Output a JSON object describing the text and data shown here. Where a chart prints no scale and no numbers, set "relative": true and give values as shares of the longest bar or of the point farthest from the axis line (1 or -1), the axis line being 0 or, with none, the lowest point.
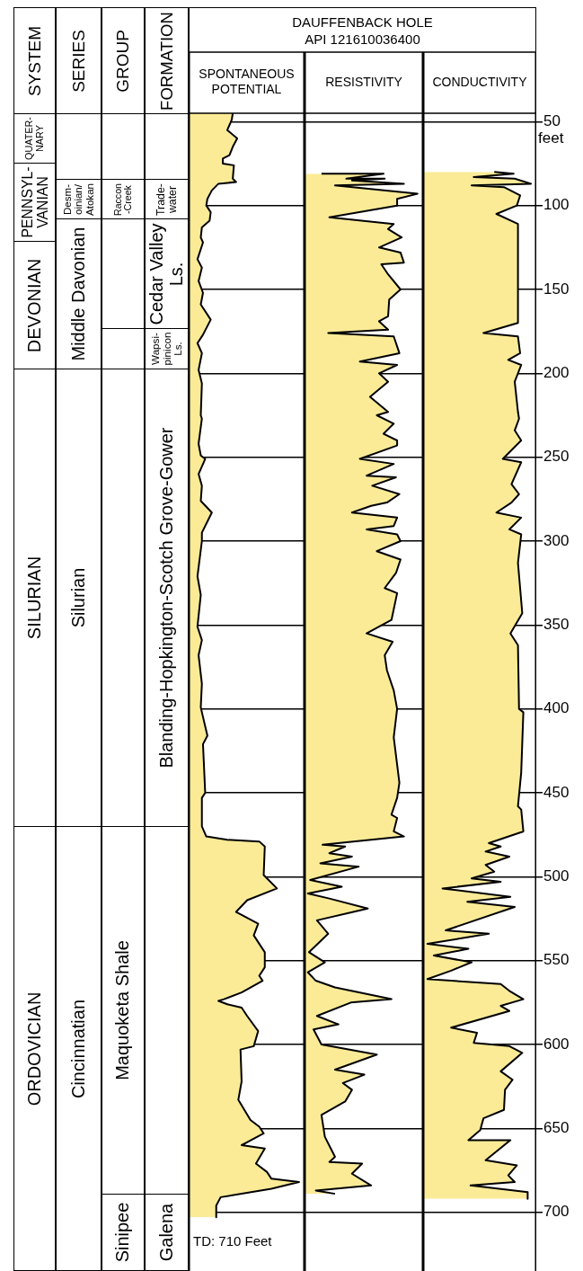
{
  "chart_data": [
    {
      "type": "other",
      "title": "SYSTEM",
      "annotations": [
        "QUATER-\nNARY",
        "PENNSYL-\nVANIAN",
        "DEVONIAN",
        "SILURIAN",
        "ORDOVICIAN"
      ]
    },
    {
      "type": "other",
      "title": "SERIES",
      "annotations": [
        "Desm-\noinian/\nAtokan",
        "Middle Davonian",
        "Silurian",
        "Cincinnatian"
      ]
    },
    {
      "type": "other",
      "title": "GROUP",
      "annotations": [
        "Raccon\n-Creek",
        "Maquoketa Shale",
        "Sinipee"
      ]
    },
    {
      "type": "other",
      "title": "FORMATION",
      "annotations": [
        "Trade-\nwater",
        "Cedar Valley\nLs.",
        "Wapsi-\npinicon\nLs.",
        "Blanding-Hopkington-Scotch Grove-Gower",
        "Galena"
      ]
    },
    {
      "type": "other",
      "title": "DAUFFENBACK HOLE",
      "subtitle": "API 121610036400"
    },
    {
      "type": "area",
      "title": "SPONTANEOUS POTENTIAL",
      "relative": true,
      "orientation": "horizontal",
      "color": "#fbeb97",
      "ylim": [
        735,
        45
      ],
      "yticks": [
        50,
        100,
        150,
        200,
        250,
        300,
        350,
        400,
        450,
        500,
        550,
        600,
        650,
        700
      ],
      "grid": "y",
      "tick_labels": false,
      "annotations": [
        "TD: 710 Feet"
      ],
      "x": [
        45,
        49,
        55,
        60,
        65,
        70,
        72,
        75,
        76,
        84,
        86,
        87,
        91,
        96,
        100,
        104,
        109,
        113,
        119,
        122,
        132,
        137,
        145,
        152,
        159,
        168,
        177,
        182,
        188,
        198,
        206,
        225,
        227,
        242,
        249,
        251,
        260,
        267,
        276,
        283,
        295,
        300,
        321,
        332,
        351,
        359,
        368,
        385,
        399,
        402,
        416,
        421,
        450,
        453,
        470,
        476,
        478,
        479,
        482,
        499,
        507,
        514,
        521,
        528,
        535,
        545,
        554,
        559,
        562,
        569,
        573,
        574,
        576,
        578,
        583,
        592,
        601,
        603,
        622,
        633,
        645,
        649,
        653,
        660,
        662,
        671,
        676,
        680,
        682,
        686,
        691,
        696,
        703
      ],
      "values": [
        0.4,
        0.39,
        0.35,
        0.44,
        0.4,
        0.37,
        0.31,
        0.31,
        0.41,
        0.4,
        0.43,
        0.27,
        0.21,
        0.17,
        0.16,
        0.2,
        0.19,
        0.12,
        0.11,
        0.13,
        0.08,
        0.12,
        0.09,
        0.13,
        0.11,
        0.2,
        0.13,
        0.08,
        0.12,
        0.09,
        0.12,
        0.11,
        0.12,
        0.09,
        0.11,
        0.15,
        0.09,
        0.12,
        0.11,
        0.21,
        0.12,
        0.12,
        0.08,
        0.11,
        0.08,
        0.12,
        0.09,
        0.12,
        0.11,
        0.12,
        0.17,
        0.13,
        0.15,
        0.12,
        0.12,
        0.16,
        0.35,
        0.64,
        0.69,
        0.68,
        0.8,
        0.53,
        0.43,
        0.63,
        0.59,
        0.69,
        0.69,
        0.64,
        0.67,
        0.48,
        0.32,
        0.27,
        0.35,
        0.48,
        0.53,
        0.63,
        0.59,
        0.47,
        0.48,
        0.45,
        0.56,
        0.64,
        0.68,
        0.48,
        0.69,
        0.61,
        0.71,
        0.75,
        1,
        0.75,
        0.29,
        0.25,
        0.25
      ]
    },
    {
      "type": "area",
      "title": "RESISTIVITY",
      "relative": true,
      "orientation": "horizontal",
      "color": "#fbeb97",
      "ylim": [
        735,
        45
      ],
      "yticks": [
        50,
        100,
        150,
        200,
        250,
        300,
        350,
        400,
        450,
        500,
        550,
        600,
        650,
        700
      ],
      "grid": "y",
      "tick_labels": false,
      "x": [
        81,
        81,
        84,
        84,
        85,
        87,
        88,
        93,
        96,
        100,
        107,
        111,
        114,
        119,
        125,
        128,
        134,
        135,
        141,
        150,
        156,
        166,
        169,
        174,
        176,
        178,
        188,
        193,
        195,
        200,
        205,
        214,
        223,
        225,
        230,
        236,
        240,
        243,
        251,
        254,
        261,
        262,
        267,
        272,
        277,
        279,
        283,
        286,
        291,
        293,
        296,
        300,
        306,
        311,
        319,
        328,
        331,
        347,
        355,
        360,
        368,
        377,
        389,
        400,
        417,
        444,
        453,
        463,
        465,
        473,
        476,
        481,
        482,
        486,
        488,
        492,
        494,
        502,
        506,
        510,
        513,
        519,
        526,
        534,
        545,
        551,
        557,
        562,
        566,
        573,
        575,
        583,
        588,
        591,
        600,
        606,
        615,
        618,
        623,
        627,
        634,
        642,
        655,
        667,
        670,
        671,
        677,
        684,
        687,
        689
      ],
      "values": [
        0.15,
        0.7,
        0.37,
        0.71,
        0.42,
        0.88,
        0.27,
        1,
        0.82,
        0.82,
        0.22,
        0.79,
        0.74,
        0.86,
        0.66,
        0.85,
        0.88,
        0.68,
        0.74,
        0.85,
        0.75,
        0.74,
        0.66,
        0.74,
        0.21,
        0.79,
        0.84,
        0.49,
        0.82,
        0.66,
        0.74,
        0.58,
        0.74,
        0.64,
        0.79,
        0.7,
        0.82,
        0.82,
        0.49,
        0.79,
        0.55,
        0.81,
        0.6,
        0.84,
        0.73,
        0.59,
        0.42,
        0.82,
        0.79,
        0.55,
        0.82,
        0.85,
        0.64,
        0.85,
        0.81,
        0.71,
        0.82,
        0.77,
        0.55,
        0.78,
        0.71,
        0.73,
        0.79,
        0.82,
        0.79,
        0.84,
        0.82,
        0.77,
        0.82,
        0.79,
        0.88,
        0.16,
        0.36,
        0.22,
        0.42,
        0.14,
        0.48,
        0.05,
        0.33,
        0.03,
        0.22,
        0.56,
        0.11,
        0.21,
        0.04,
        0.18,
        0.03,
        0.1,
        0.27,
        0.77,
        0.41,
        0.11,
        0.3,
        0.08,
        0.15,
        0.64,
        0.27,
        0.53,
        0.34,
        0.42,
        0.36,
        0.15,
        0.18,
        0.27,
        0.22,
        0.51,
        0.42,
        0.59,
        0.1,
        0.27
      ]
    },
    {
      "type": "area",
      "title": "CONDUCTIVITY",
      "relative": true,
      "orientation": "horizontal",
      "color": "#fbeb97",
      "ylim": [
        735,
        45
      ],
      "yticks": [
        50,
        100,
        150,
        200,
        250,
        300,
        350,
        400,
        450,
        500,
        550,
        600,
        650,
        700
      ],
      "grid": "y",
      "tick_labels": "y",
      "ylabel": "feet",
      "x": [
        80,
        81,
        83,
        84,
        87,
        88,
        89,
        94,
        100,
        105,
        111,
        170,
        176,
        178,
        188,
        192,
        195,
        205,
        223,
        227,
        234,
        240,
        251,
        253,
        266,
        272,
        277,
        283,
        286,
        293,
        296,
        313,
        343,
        355,
        362,
        400,
        402,
        438,
        458,
        460,
        473,
        480,
        482,
        485,
        488,
        493,
        497,
        501,
        503,
        507,
        512,
        515,
        518,
        532,
        534,
        540,
        543,
        547,
        551,
        556,
        561,
        564,
        568,
        573,
        577,
        580,
        590,
        593,
        599,
        601,
        605,
        616,
        621,
        627,
        639,
        644,
        651,
        657,
        657,
        669,
        672,
        678,
        682,
        684,
        688,
        692
      ],
      "values": [
        0.66,
        0.84,
        0.47,
        0.85,
        1,
        0.45,
        0.75,
        0.9,
        0.87,
        0.68,
        0.88,
        0.88,
        0.56,
        0.88,
        0.9,
        0.79,
        0.91,
        0.85,
        0.88,
        0.89,
        0.85,
        0.91,
        0.74,
        0.91,
        0.82,
        0.89,
        0.82,
        0.68,
        0.91,
        0.8,
        0.91,
        0.88,
        0.92,
        0.81,
        0.88,
        0.89,
        0.93,
        0.91,
        0.88,
        0.91,
        0.93,
        0.61,
        0.72,
        0.58,
        0.8,
        0.58,
        0.66,
        0.45,
        0.72,
        0.18,
        0.81,
        0.41,
        0.85,
        0.21,
        0.61,
        0.04,
        0.42,
        0.1,
        0.45,
        0.26,
        0.04,
        0.72,
        0.8,
        0.93,
        0.72,
        0.8,
        0.26,
        0.5,
        0.47,
        0.8,
        0.92,
        0.72,
        0.83,
        0.76,
        0.75,
        0.56,
        0.53,
        0.42,
        0.81,
        0.58,
        0.87,
        0.79,
        0.85,
        0.44,
        0.97,
        0.97
      ]
    }
  ]
}
